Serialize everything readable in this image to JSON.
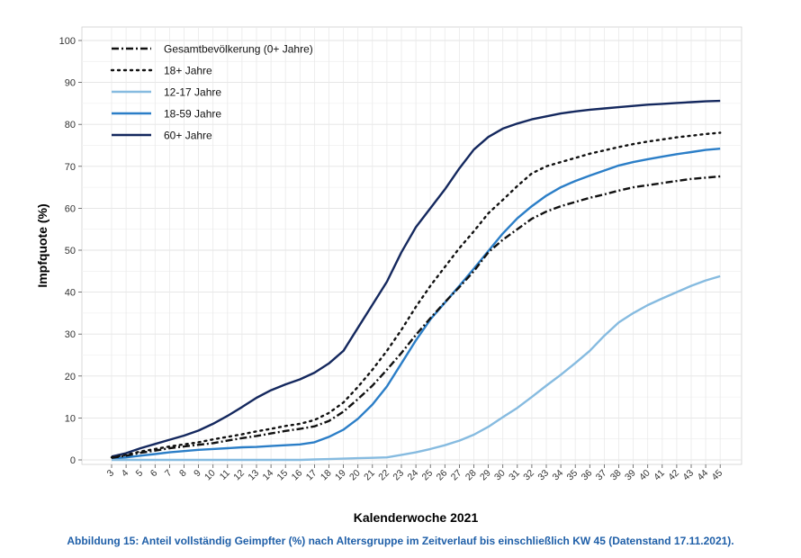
{
  "chart_data": {
    "type": "line",
    "title": "",
    "xlabel": "Kalenderwoche 2021",
    "ylabel": "Impfquote (%)",
    "ylim": [
      0,
      100
    ],
    "yticks": [
      0,
      10,
      20,
      30,
      40,
      50,
      60,
      70,
      80,
      90,
      100
    ],
    "legend_position": "top-left",
    "grid": true,
    "categories": [
      "3",
      "4",
      "5",
      "6",
      "7",
      "8",
      "9",
      "10",
      "11",
      "12",
      "13",
      "14",
      "15",
      "16",
      "17",
      "18",
      "19",
      "20",
      "21",
      "22",
      "23",
      "24",
      "25",
      "26",
      "27",
      "28",
      "29",
      "30",
      "31",
      "32",
      "33",
      "34",
      "35",
      "36",
      "37",
      "38",
      "39",
      "40",
      "41",
      "42",
      "43",
      "44",
      "45"
    ],
    "series": [
      {
        "name": "Gesamtbevölkerung (0+ Jahre)",
        "color": "#111111",
        "style": "dashdot",
        "values": [
          0.5,
          1.0,
          1.7,
          2.2,
          2.8,
          3.2,
          3.6,
          4.0,
          4.6,
          5.2,
          5.7,
          6.3,
          6.9,
          7.4,
          8.0,
          9.3,
          11.5,
          14.5,
          17.7,
          21.5,
          25.5,
          29.8,
          33.8,
          37.6,
          41.2,
          45.0,
          49.5,
          52.5,
          55.0,
          57.5,
          59.2,
          60.5,
          61.5,
          62.5,
          63.3,
          64.2,
          65.0,
          65.5,
          66.0,
          66.5,
          67.0,
          67.3,
          67.6
        ]
      },
      {
        "name": "18+ Jahre",
        "color": "#111111",
        "style": "dotted",
        "values": [
          0.6,
          1.2,
          2.0,
          2.6,
          3.2,
          3.7,
          4.2,
          4.9,
          5.5,
          6.1,
          6.8,
          7.4,
          8.1,
          8.6,
          9.5,
          11.2,
          13.7,
          17.4,
          21.5,
          26.0,
          31.0,
          36.5,
          41.5,
          46.0,
          50.5,
          54.5,
          58.8,
          62.0,
          65.3,
          68.3,
          70.0,
          71.0,
          72.0,
          73.0,
          73.8,
          74.6,
          75.3,
          75.9,
          76.4,
          76.9,
          77.3,
          77.7,
          78.0
        ]
      },
      {
        "name": "12-17 Jahre",
        "color": "#86bbe0",
        "style": "solid",
        "values": [
          0,
          0,
          0,
          0,
          0,
          0,
          0,
          0,
          0,
          0,
          0,
          0,
          0,
          0,
          0.1,
          0.2,
          0.3,
          0.4,
          0.5,
          0.6,
          1.2,
          1.8,
          2.6,
          3.5,
          4.6,
          6.0,
          7.9,
          10.2,
          12.4,
          15.0,
          17.7,
          20.3,
          23.1,
          26.0,
          29.6,
          32.8,
          35.0,
          36.9,
          38.5,
          40.0,
          41.5,
          42.8,
          43.8
        ]
      },
      {
        "name": "18-59 Jahre",
        "color": "#2b7ec7",
        "style": "solid",
        "values": [
          0.3,
          0.6,
          1.0,
          1.4,
          1.8,
          2.1,
          2.4,
          2.6,
          2.8,
          3.0,
          3.1,
          3.3,
          3.5,
          3.7,
          4.2,
          5.5,
          7.2,
          9.8,
          13.2,
          17.5,
          23.0,
          28.5,
          33.5,
          37.5,
          41.5,
          45.6,
          49.8,
          54.0,
          57.6,
          60.5,
          63.0,
          65.0,
          66.5,
          67.8,
          69.0,
          70.2,
          71.0,
          71.7,
          72.3,
          72.9,
          73.4,
          73.9,
          74.2
        ]
      },
      {
        "name": "60+ Jahre",
        "color": "#14285e",
        "style": "solid",
        "values": [
          0.8,
          1.6,
          2.8,
          3.8,
          4.8,
          5.8,
          7.0,
          8.6,
          10.5,
          12.6,
          14.8,
          16.6,
          18.0,
          19.2,
          20.8,
          23.0,
          26.0,
          31.5,
          37.0,
          42.5,
          49.5,
          55.5,
          60.0,
          64.5,
          69.5,
          74.0,
          77.0,
          79.0,
          80.2,
          81.2,
          81.9,
          82.6,
          83.1,
          83.5,
          83.8,
          84.1,
          84.4,
          84.7,
          84.9,
          85.1,
          85.3,
          85.5,
          85.6
        ]
      }
    ]
  },
  "caption": "Abbildung 15: Anteil vollständig Geimpfter (%) nach Altersgruppe im Zeitverlauf bis einschließlich KW 45 (Datenstand 17.11.2021)."
}
